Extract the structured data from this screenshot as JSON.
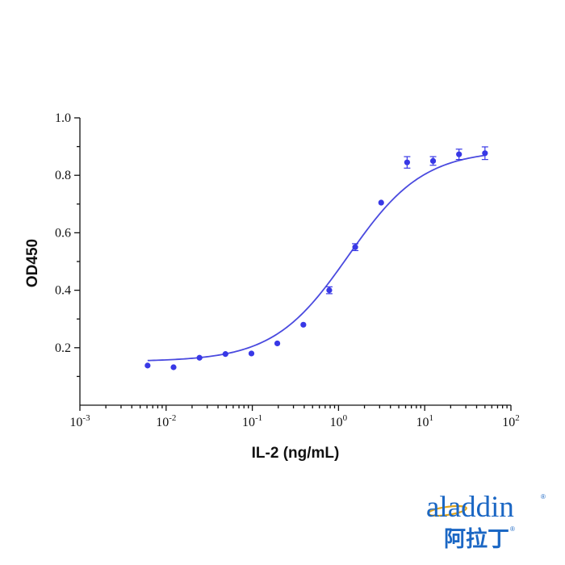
{
  "chart_data": {
    "type": "scatter",
    "xlabel": "IL-2 (ng/mL)",
    "ylabel": "OD450",
    "xscale": "log",
    "xlim": [
      0.001,
      100
    ],
    "ylim": [
      0.0,
      1.0
    ],
    "x_ticks": [
      {
        "base": "10",
        "exp": "-3"
      },
      {
        "base": "10",
        "exp": "-2"
      },
      {
        "base": "10",
        "exp": "-1"
      },
      {
        "base": "10",
        "exp": "0"
      },
      {
        "base": "10",
        "exp": "1"
      },
      {
        "base": "10",
        "exp": "2"
      }
    ],
    "y_ticks": [
      "0.2",
      "0.4",
      "0.6",
      "0.8",
      "1.0"
    ],
    "grid": false,
    "series": [
      {
        "x": [
          0.0061,
          0.0122,
          0.0244,
          0.0488,
          0.0977,
          0.195,
          0.391,
          0.781,
          1.5625,
          3.125,
          6.25,
          12.5,
          25,
          50
        ],
        "y": [
          0.138,
          0.132,
          0.165,
          0.178,
          0.18,
          0.215,
          0.28,
          0.4,
          0.55,
          0.705,
          0.845,
          0.85,
          0.873,
          0.877
        ],
        "err": [
          0.0,
          0.0,
          0.0,
          0.0,
          0.0,
          0.0,
          0.0,
          0.012,
          0.012,
          0.0,
          0.02,
          0.015,
          0.018,
          0.022
        ],
        "color": "#3838e6"
      }
    ],
    "fit": {
      "model": "4PL",
      "bottom": 0.152,
      "top": 0.888,
      "ec50": 1.3,
      "hill": 1.0,
      "color": "#4a4adf"
    }
  },
  "logo": {
    "text_en": "aladdin",
    "text_cn": "阿拉丁",
    "reg_mark": "®",
    "color": "#1b67c4",
    "accent_color": "#e0a51e"
  }
}
